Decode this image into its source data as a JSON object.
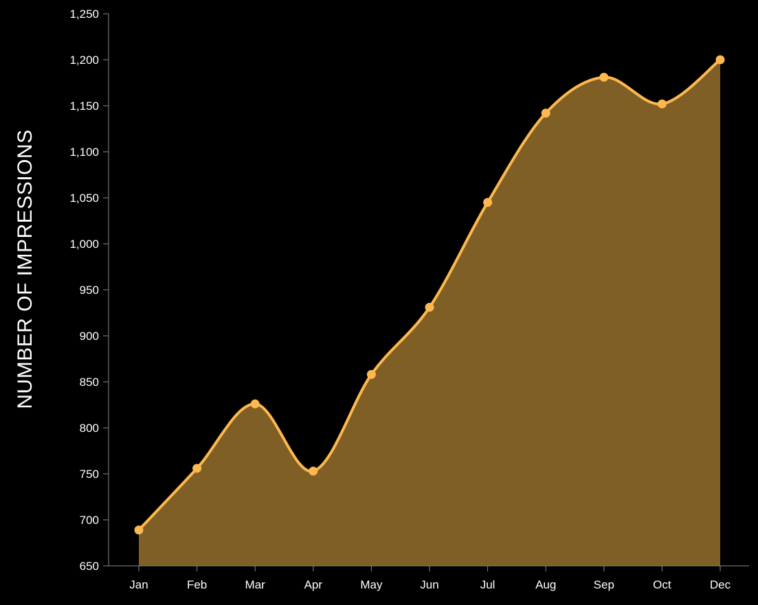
{
  "chart_data": {
    "type": "area",
    "title": "",
    "xlabel": "",
    "ylabel": "NUMBER OF IMPRESSIONS",
    "categories": [
      "Jan",
      "Feb",
      "Mar",
      "Apr",
      "May",
      "Jun",
      "Jul",
      "Aug",
      "Sep",
      "Oct",
      "Dec"
    ],
    "series": [
      {
        "values": [
          689,
          756,
          826,
          753,
          858,
          931,
          1045,
          1142,
          1181,
          1152,
          1200
        ]
      }
    ],
    "ylim": [
      650,
      1250
    ],
    "yticks": [
      650,
      700,
      750,
      800,
      850,
      900,
      950,
      1000,
      1050,
      1100,
      1150,
      1200,
      1250
    ],
    "ytick_labels": [
      "650",
      "700",
      "750",
      "800",
      "850",
      "900",
      "950",
      "1,000",
      "1,050",
      "1,100",
      "1,150",
      "1,200",
      "1,250"
    ],
    "grid": false,
    "legend": "none",
    "colors": {
      "line": "#ffb84d",
      "fill": "#7f5f26",
      "point": "#ffb84d",
      "axis": "#8a8a8a",
      "text": "#ffffff",
      "background": "#000000"
    }
  }
}
